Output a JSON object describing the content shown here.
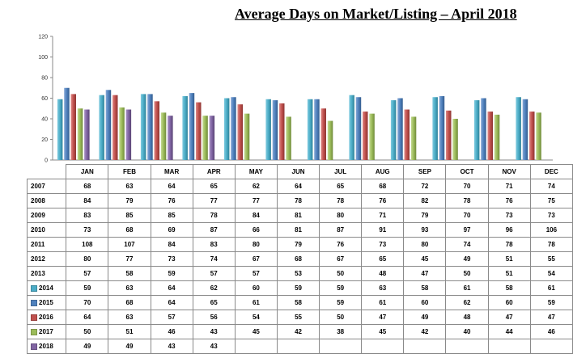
{
  "title": "Average Days on Market/Listing – April 2018",
  "chart_data": {
    "type": "bar",
    "title": "Average Days on Market/Listing – April 2018",
    "categories": [
      "JAN",
      "FEB",
      "MAR",
      "APR",
      "MAY",
      "JUN",
      "JUL",
      "AUG",
      "SEP",
      "OCT",
      "NOV",
      "DEC"
    ],
    "ylim": [
      0,
      120
    ],
    "yticks": [
      0,
      20,
      40,
      60,
      80,
      100,
      120
    ],
    "grid": false,
    "legend": "table-left",
    "series": [
      {
        "name": "2014",
        "color": "#4bacc6",
        "values": [
          59,
          63,
          64,
          62,
          60,
          59,
          59,
          63,
          58,
          61,
          58,
          61
        ]
      },
      {
        "name": "2015",
        "color": "#4f81bd",
        "values": [
          70,
          68,
          64,
          65,
          61,
          58,
          59,
          61,
          60,
          62,
          60,
          59
        ]
      },
      {
        "name": "2016",
        "color": "#c0504d",
        "values": [
          64,
          63,
          57,
          56,
          54,
          55,
          50,
          47,
          49,
          48,
          47,
          47
        ]
      },
      {
        "name": "2017",
        "color": "#9bbb59",
        "values": [
          50,
          51,
          46,
          43,
          45,
          42,
          38,
          45,
          42,
          40,
          44,
          46
        ]
      },
      {
        "name": "2018",
        "color": "#8064a2",
        "values": [
          49,
          49,
          43,
          43,
          null,
          null,
          null,
          null,
          null,
          null,
          null,
          null
        ]
      }
    ]
  },
  "table": {
    "header": [
      "JAN",
      "FEB",
      "MAR",
      "APR",
      "MAY",
      "JUN",
      "JUL",
      "AUG",
      "SEP",
      "OCT",
      "NOV",
      "DEC"
    ],
    "rows": [
      {
        "year": "2007",
        "values": [
          "68",
          "63",
          "64",
          "65",
          "62",
          "64",
          "65",
          "68",
          "72",
          "70",
          "71",
          "74"
        ]
      },
      {
        "year": "2008",
        "values": [
          "84",
          "79",
          "76",
          "77",
          "77",
          "78",
          "78",
          "76",
          "82",
          "78",
          "76",
          "75"
        ]
      },
      {
        "year": "2009",
        "values": [
          "83",
          "85",
          "85",
          "78",
          "84",
          "81",
          "80",
          "71",
          "79",
          "70",
          "73",
          "73"
        ]
      },
      {
        "year": "2010",
        "values": [
          "73",
          "68",
          "69",
          "87",
          "66",
          "81",
          "87",
          "91",
          "93",
          "97",
          "96",
          "106"
        ]
      },
      {
        "year": "2011",
        "values": [
          "108",
          "107",
          "84",
          "83",
          "80",
          "79",
          "76",
          "73",
          "80",
          "74",
          "78",
          "78"
        ]
      },
      {
        "year": "2012",
        "values": [
          "80",
          "77",
          "73",
          "74",
          "67",
          "68",
          "67",
          "65",
          "45",
          "49",
          "51",
          "55"
        ]
      },
      {
        "year": "2013",
        "values": [
          "57",
          "58",
          "59",
          "57",
          "57",
          "53",
          "50",
          "48",
          "47",
          "50",
          "51",
          "54"
        ]
      },
      {
        "year": "2014",
        "color": "#4bacc6",
        "values": [
          "59",
          "63",
          "64",
          "62",
          "60",
          "59",
          "59",
          "63",
          "58",
          "61",
          "58",
          "61"
        ]
      },
      {
        "year": "2015",
        "color": "#4f81bd",
        "values": [
          "70",
          "68",
          "64",
          "65",
          "61",
          "58",
          "59",
          "61",
          "60",
          "62",
          "60",
          "59"
        ]
      },
      {
        "year": "2016",
        "color": "#c0504d",
        "values": [
          "64",
          "63",
          "57",
          "56",
          "54",
          "55",
          "50",
          "47",
          "49",
          "48",
          "47",
          "47"
        ]
      },
      {
        "year": "2017",
        "color": "#9bbb59",
        "values": [
          "50",
          "51",
          "46",
          "43",
          "45",
          "42",
          "38",
          "45",
          "42",
          "40",
          "44",
          "46"
        ]
      },
      {
        "year": "2018",
        "color": "#8064a2",
        "values": [
          "49",
          "49",
          "43",
          "43",
          "",
          "",
          "",
          "",
          "",
          "",
          "",
          ""
        ]
      }
    ]
  }
}
